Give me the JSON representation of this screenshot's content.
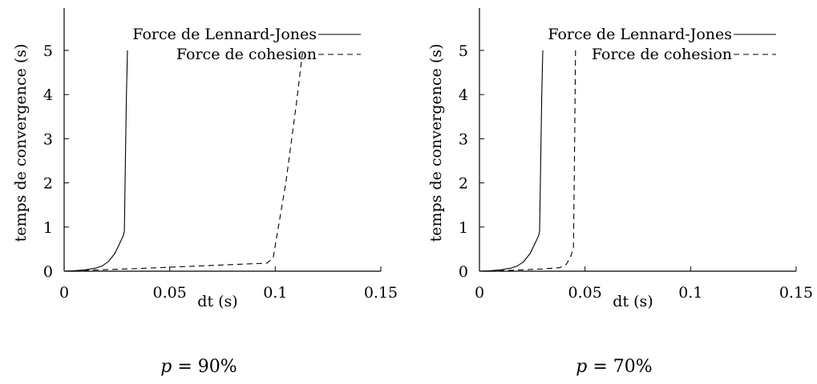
{
  "chart_data": [
    {
      "type": "line",
      "xlabel": "dt (s)",
      "ylabel": "temps de convergence (s)",
      "xlim": [
        0,
        0.15
      ],
      "ylim": [
        0,
        5
      ],
      "x_ticks": [
        "0",
        "0.05",
        "0.1",
        "0.15"
      ],
      "y_ticks": [
        "0",
        "1",
        "2",
        "3",
        "4",
        "5"
      ],
      "legend_position": "top-right",
      "series": [
        {
          "name": "Force de Lennard-Jones",
          "style": "solid",
          "x": [
            0,
            0.005,
            0.01,
            0.015,
            0.018,
            0.021,
            0.024,
            0.026,
            0.028,
            0.0285,
            0.029,
            0.0295,
            0.03
          ],
          "y": [
            0,
            0.01,
            0.03,
            0.07,
            0.12,
            0.22,
            0.4,
            0.6,
            0.8,
            0.9,
            2.5,
            4.0,
            5.0
          ]
        },
        {
          "name": "Force de cohesion",
          "style": "dashed",
          "x": [
            0,
            0.01,
            0.03,
            0.05,
            0.07,
            0.09,
            0.096,
            0.099,
            0.105,
            0.11,
            0.113
          ],
          "y": [
            0,
            0.02,
            0.05,
            0.09,
            0.13,
            0.17,
            0.18,
            0.3,
            2.0,
            3.8,
            5.0
          ]
        }
      ],
      "caption": {
        "var": "p",
        "rest": " = 90%"
      }
    },
    {
      "type": "line",
      "xlabel": "dt (s)",
      "ylabel": "temps de convergence (s)",
      "xlim": [
        0,
        0.15
      ],
      "ylim": [
        0,
        5
      ],
      "x_ticks": [
        "0",
        "0.05",
        "0.1",
        "0.15"
      ],
      "y_ticks": [
        "0",
        "1",
        "2",
        "3",
        "4",
        "5"
      ],
      "legend_position": "top-right",
      "series": [
        {
          "name": "Force de Lennard-Jones",
          "style": "solid",
          "x": [
            0,
            0.005,
            0.01,
            0.015,
            0.018,
            0.021,
            0.024,
            0.026,
            0.028,
            0.0285,
            0.029,
            0.0295,
            0.03
          ],
          "y": [
            0,
            0.01,
            0.03,
            0.07,
            0.12,
            0.22,
            0.4,
            0.6,
            0.8,
            0.9,
            2.5,
            4.0,
            5.0
          ]
        },
        {
          "name": "Force de cohesion",
          "style": "dashed",
          "x": [
            0,
            0.01,
            0.02,
            0.03,
            0.038,
            0.041,
            0.043,
            0.044,
            0.0445,
            0.045,
            0.0455
          ],
          "y": [
            0,
            0.01,
            0.03,
            0.05,
            0.08,
            0.15,
            0.3,
            0.45,
            0.5,
            2.5,
            5.0
          ]
        }
      ],
      "caption": {
        "var": "p",
        "rest": " = 70%"
      }
    }
  ]
}
